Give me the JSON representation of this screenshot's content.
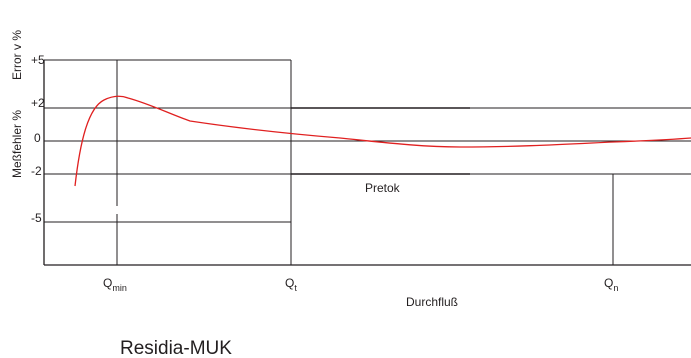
{
  "diagram": {
    "y_axis_title_1": "Error v %",
    "y_axis_title_2": "Meßfehler %",
    "y_ticks": [
      "+5",
      "+2",
      "0",
      "-2",
      "-5"
    ],
    "x_ticks": [
      {
        "main": "Q",
        "sub": "min"
      },
      {
        "main": "Q",
        "sub": "t"
      },
      {
        "main": "Q",
        "sub": "n"
      }
    ],
    "x_axis_title": "Durchfluß",
    "band_label": "Pretok",
    "caption": "Residia-MUK",
    "colors": {
      "curve": "#e02020",
      "lines": "#231f20"
    }
  }
}
